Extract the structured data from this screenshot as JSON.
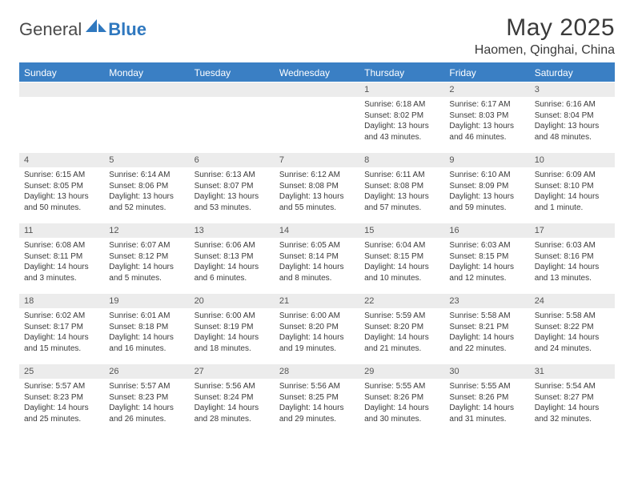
{
  "logo": {
    "general": "General",
    "blue": "Blue"
  },
  "title": "May 2025",
  "location": "Haomen, Qinghai, China",
  "colors": {
    "header_bg": "#3a7fc4",
    "header_text": "#ffffff",
    "daynum_bg": "#ececec",
    "rule": "#3a7fc4",
    "text": "#3a3a3a"
  },
  "day_headers": [
    "Sunday",
    "Monday",
    "Tuesday",
    "Wednesday",
    "Thursday",
    "Friday",
    "Saturday"
  ],
  "weeks": [
    [
      null,
      null,
      null,
      null,
      {
        "n": "1",
        "sunrise": "6:18 AM",
        "sunset": "8:02 PM",
        "daylight": "13 hours and 43 minutes."
      },
      {
        "n": "2",
        "sunrise": "6:17 AM",
        "sunset": "8:03 PM",
        "daylight": "13 hours and 46 minutes."
      },
      {
        "n": "3",
        "sunrise": "6:16 AM",
        "sunset": "8:04 PM",
        "daylight": "13 hours and 48 minutes."
      }
    ],
    [
      {
        "n": "4",
        "sunrise": "6:15 AM",
        "sunset": "8:05 PM",
        "daylight": "13 hours and 50 minutes."
      },
      {
        "n": "5",
        "sunrise": "6:14 AM",
        "sunset": "8:06 PM",
        "daylight": "13 hours and 52 minutes."
      },
      {
        "n": "6",
        "sunrise": "6:13 AM",
        "sunset": "8:07 PM",
        "daylight": "13 hours and 53 minutes."
      },
      {
        "n": "7",
        "sunrise": "6:12 AM",
        "sunset": "8:08 PM",
        "daylight": "13 hours and 55 minutes."
      },
      {
        "n": "8",
        "sunrise": "6:11 AM",
        "sunset": "8:08 PM",
        "daylight": "13 hours and 57 minutes."
      },
      {
        "n": "9",
        "sunrise": "6:10 AM",
        "sunset": "8:09 PM",
        "daylight": "13 hours and 59 minutes."
      },
      {
        "n": "10",
        "sunrise": "6:09 AM",
        "sunset": "8:10 PM",
        "daylight": "14 hours and 1 minute."
      }
    ],
    [
      {
        "n": "11",
        "sunrise": "6:08 AM",
        "sunset": "8:11 PM",
        "daylight": "14 hours and 3 minutes."
      },
      {
        "n": "12",
        "sunrise": "6:07 AM",
        "sunset": "8:12 PM",
        "daylight": "14 hours and 5 minutes."
      },
      {
        "n": "13",
        "sunrise": "6:06 AM",
        "sunset": "8:13 PM",
        "daylight": "14 hours and 6 minutes."
      },
      {
        "n": "14",
        "sunrise": "6:05 AM",
        "sunset": "8:14 PM",
        "daylight": "14 hours and 8 minutes."
      },
      {
        "n": "15",
        "sunrise": "6:04 AM",
        "sunset": "8:15 PM",
        "daylight": "14 hours and 10 minutes."
      },
      {
        "n": "16",
        "sunrise": "6:03 AM",
        "sunset": "8:15 PM",
        "daylight": "14 hours and 12 minutes."
      },
      {
        "n": "17",
        "sunrise": "6:03 AM",
        "sunset": "8:16 PM",
        "daylight": "14 hours and 13 minutes."
      }
    ],
    [
      {
        "n": "18",
        "sunrise": "6:02 AM",
        "sunset": "8:17 PM",
        "daylight": "14 hours and 15 minutes."
      },
      {
        "n": "19",
        "sunrise": "6:01 AM",
        "sunset": "8:18 PM",
        "daylight": "14 hours and 16 minutes."
      },
      {
        "n": "20",
        "sunrise": "6:00 AM",
        "sunset": "8:19 PM",
        "daylight": "14 hours and 18 minutes."
      },
      {
        "n": "21",
        "sunrise": "6:00 AM",
        "sunset": "8:20 PM",
        "daylight": "14 hours and 19 minutes."
      },
      {
        "n": "22",
        "sunrise": "5:59 AM",
        "sunset": "8:20 PM",
        "daylight": "14 hours and 21 minutes."
      },
      {
        "n": "23",
        "sunrise": "5:58 AM",
        "sunset": "8:21 PM",
        "daylight": "14 hours and 22 minutes."
      },
      {
        "n": "24",
        "sunrise": "5:58 AM",
        "sunset": "8:22 PM",
        "daylight": "14 hours and 24 minutes."
      }
    ],
    [
      {
        "n": "25",
        "sunrise": "5:57 AM",
        "sunset": "8:23 PM",
        "daylight": "14 hours and 25 minutes."
      },
      {
        "n": "26",
        "sunrise": "5:57 AM",
        "sunset": "8:23 PM",
        "daylight": "14 hours and 26 minutes."
      },
      {
        "n": "27",
        "sunrise": "5:56 AM",
        "sunset": "8:24 PM",
        "daylight": "14 hours and 28 minutes."
      },
      {
        "n": "28",
        "sunrise": "5:56 AM",
        "sunset": "8:25 PM",
        "daylight": "14 hours and 29 minutes."
      },
      {
        "n": "29",
        "sunrise": "5:55 AM",
        "sunset": "8:26 PM",
        "daylight": "14 hours and 30 minutes."
      },
      {
        "n": "30",
        "sunrise": "5:55 AM",
        "sunset": "8:26 PM",
        "daylight": "14 hours and 31 minutes."
      },
      {
        "n": "31",
        "sunrise": "5:54 AM",
        "sunset": "8:27 PM",
        "daylight": "14 hours and 32 minutes."
      }
    ]
  ],
  "labels": {
    "sunrise": "Sunrise: ",
    "sunset": "Sunset: ",
    "daylight": "Daylight: "
  }
}
